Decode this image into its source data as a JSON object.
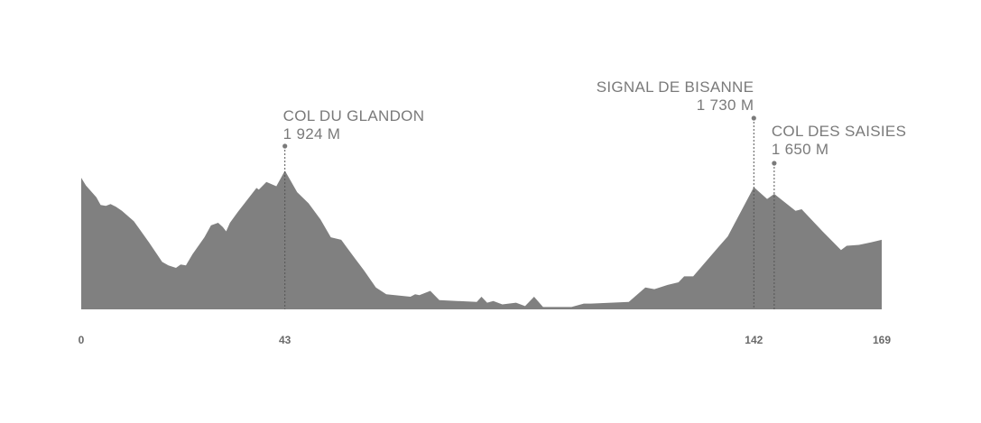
{
  "chart_data": {
    "type": "area",
    "title": "",
    "xlabel": "",
    "ylabel": "",
    "x_unit": "km",
    "y_unit": "m",
    "xlim": [
      0,
      169
    ],
    "ylim": [
      292,
      2000
    ],
    "grid": false,
    "fill_color": "#808080",
    "text_color": "#7a7a7a",
    "x_ticks": [
      {
        "value": 0,
        "label": "0"
      },
      {
        "value": 43,
        "label": "43"
      },
      {
        "value": 142,
        "label": "142"
      },
      {
        "value": 169,
        "label": "169"
      }
    ],
    "points": [
      [
        0,
        1840
      ],
      [
        1,
        1750
      ],
      [
        3.2,
        1610
      ],
      [
        4.1,
        1520
      ],
      [
        5.2,
        1510
      ],
      [
        6.2,
        1530
      ],
      [
        7.3,
        1500
      ],
      [
        8.6,
        1450
      ],
      [
        11.1,
        1330
      ],
      [
        14.3,
        1080
      ],
      [
        17.1,
        850
      ],
      [
        18.4,
        810
      ],
      [
        20,
        780
      ],
      [
        21,
        820
      ],
      [
        22.1,
        810
      ],
      [
        23.5,
        940
      ],
      [
        26,
        1140
      ],
      [
        27.4,
        1280
      ],
      [
        28.9,
        1310
      ],
      [
        29.9,
        1260
      ],
      [
        30.6,
        1210
      ],
      [
        31.4,
        1310
      ],
      [
        33.1,
        1440
      ],
      [
        37,
        1720
      ],
      [
        37.5,
        1700
      ],
      [
        39.1,
        1790
      ],
      [
        41.2,
        1740
      ],
      [
        43,
        1924
      ],
      [
        45.6,
        1670
      ],
      [
        48,
        1540
      ],
      [
        50.5,
        1350
      ],
      [
        52.7,
        1140
      ],
      [
        54.9,
        1110
      ],
      [
        57.8,
        890
      ],
      [
        59.7,
        750
      ],
      [
        62.2,
        550
      ],
      [
        64.4,
        470
      ],
      [
        69.5,
        440
      ],
      [
        70.5,
        470
      ],
      [
        71.4,
        460
      ],
      [
        73.7,
        510
      ],
      [
        75.6,
        400
      ],
      [
        83.5,
        380
      ],
      [
        84.5,
        440
      ],
      [
        85.7,
        370
      ],
      [
        87,
        390
      ],
      [
        88.9,
        350
      ],
      [
        91.8,
        370
      ],
      [
        93.7,
        330
      ],
      [
        95.6,
        440
      ],
      [
        97.5,
        320
      ],
      [
        103.5,
        320
      ],
      [
        106.1,
        360
      ],
      [
        107.6,
        360
      ],
      [
        115.6,
        380
      ],
      [
        119.1,
        550
      ],
      [
        121,
        530
      ],
      [
        123.8,
        580
      ],
      [
        126.1,
        610
      ],
      [
        127.3,
        680
      ],
      [
        129.2,
        680
      ],
      [
        134.6,
        1030
      ],
      [
        136.5,
        1150
      ],
      [
        142,
        1730
      ],
      [
        144.8,
        1590
      ],
      [
        146.3,
        1650
      ],
      [
        150.8,
        1450
      ],
      [
        152.1,
        1470
      ],
      [
        156.5,
        1210
      ],
      [
        160.4,
        990
      ],
      [
        161.6,
        1040
      ],
      [
        164.2,
        1050
      ],
      [
        166.7,
        1080
      ],
      [
        169,
        1110
      ]
    ],
    "annotations": [
      {
        "name": "COL DU GLANDON",
        "elevation_label": "1 924 M",
        "km": 43,
        "elevation": 1924
      },
      {
        "name": "SIGNAL DE BISANNE",
        "elevation_label": "1 730 M",
        "km": 142,
        "elevation": 1730
      },
      {
        "name": "COL DES SAISIES",
        "elevation_label": "1 650 M",
        "km": 146.3,
        "elevation": 1650
      }
    ]
  }
}
